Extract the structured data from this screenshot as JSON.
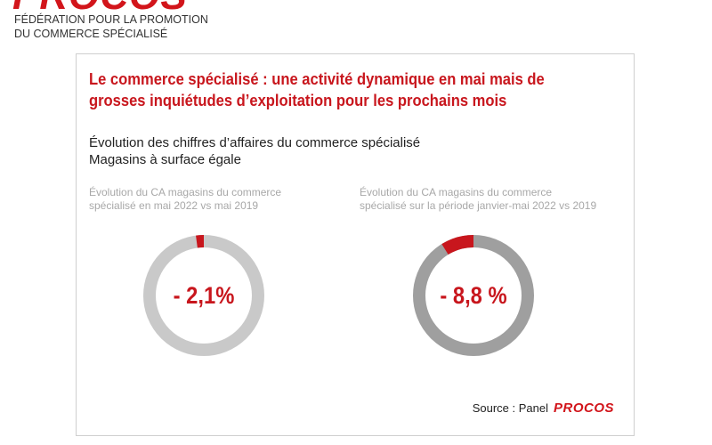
{
  "brand": {
    "logo": "PROCOS",
    "subtitle_line1": "FÉDÉRATION POUR LA PROMOTION",
    "subtitle_line2": "DU COMMERCE SPÉCIALISÉ"
  },
  "panel": {
    "title_line1": "Le commerce spécialisé : une activité dynamique en mai mais de",
    "title_line2": "grosses inquiétudes d’exploitation pour les prochains mois",
    "subtitle_line1": "Évolution des chiffres d’affaires du commerce spécialisé",
    "subtitle_line2": "Magasins à surface égale",
    "source_label": "Source : Panel",
    "source_logo": "PROCOS"
  },
  "colors": {
    "accent": "#c8161d",
    "ring_left": "#c9c9c9",
    "ring_right": "#9f9f9f"
  },
  "chart_data": [
    {
      "type": "pie",
      "title": "Évolution du CA magasins du commerce spécialisé en mai 2022 vs mai 2019",
      "center_label": "- 2,1%",
      "value_percent": -2.1,
      "slice_fraction": 0.021
    },
    {
      "type": "pie",
      "title": "Évolution du CA magasins du commerce spécialisé sur la période janvier-mai 2022 vs 2019",
      "center_label": "- 8,8 %",
      "value_percent": -8.8,
      "slice_fraction": 0.088
    }
  ]
}
